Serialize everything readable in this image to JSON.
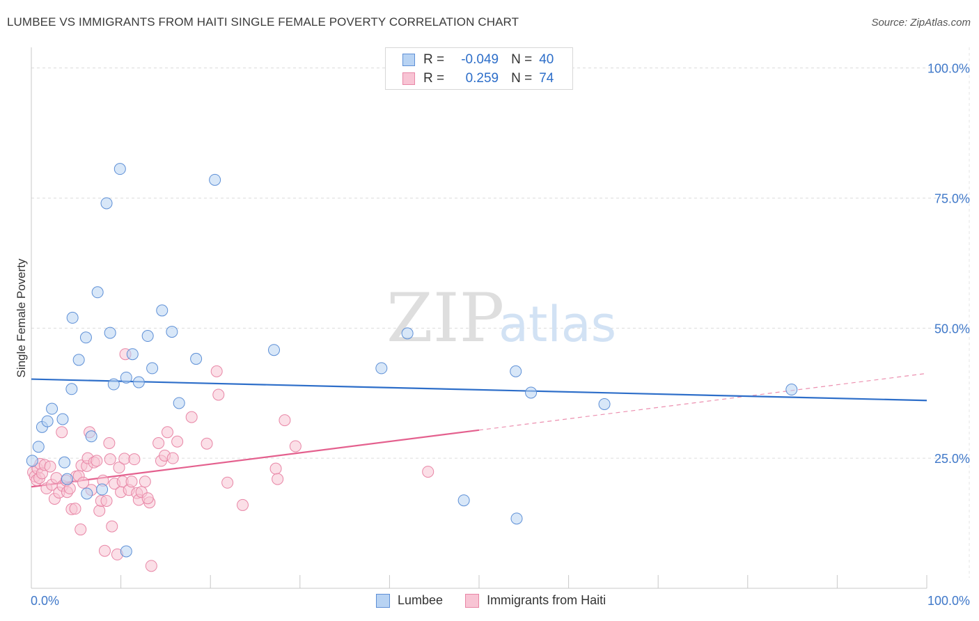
{
  "header": {
    "title": "LUMBEE VS IMMIGRANTS FROM HAITI SINGLE FEMALE POVERTY CORRELATION CHART",
    "source": "Source: ZipAtlas.com"
  },
  "legend_box": {
    "rows": [
      {
        "r_label": "R =",
        "r_value": "-0.049",
        "n_label": "N =",
        "n_value": "40"
      },
      {
        "r_label": "R =",
        "r_value": "0.259",
        "n_label": "N =",
        "n_value": "74"
      }
    ]
  },
  "bottom_legend": {
    "series1": "Lumbee",
    "series2": "Immigrants from Haiti"
  },
  "watermark": {
    "zip": "ZIP",
    "atlas": "atlas"
  },
  "colors": {
    "lumbee_fill": "#b8d3f3",
    "lumbee_stroke": "#5d8fd6",
    "lumbee_line": "#2d6ec9",
    "haiti_fill": "#f8c4d4",
    "haiti_stroke": "#e886a6",
    "haiti_line": "#e4608e",
    "axis_label": "#3f78c9",
    "grid": "#dcdcdc"
  },
  "chart_data": {
    "type": "scatter",
    "title": "LUMBEE VS IMMIGRANTS FROM HAITI SINGLE FEMALE POVERTY CORRELATION CHART",
    "xlabel": "",
    "ylabel": "Single Female Poverty",
    "xlim": [
      0,
      100
    ],
    "ylim": [
      0,
      100
    ],
    "x_tick_labels": [
      "0.0%",
      "100.0%"
    ],
    "y_tick_values": [
      25,
      50,
      75,
      100
    ],
    "y_tick_labels": [
      "25.0%",
      "50.0%",
      "75.0%",
      "100.0%"
    ],
    "series": [
      {
        "name": "Lumbee",
        "r": -0.049,
        "n": 40,
        "trend": {
          "x": [
            0,
            100
          ],
          "y": [
            40.2,
            36.1
          ],
          "solid_to": 100
        },
        "points": [
          [
            0.1,
            24.5
          ],
          [
            0.8,
            27.2
          ],
          [
            1.2,
            31.0
          ],
          [
            1.8,
            32.1
          ],
          [
            2.3,
            34.5
          ],
          [
            3.5,
            32.5
          ],
          [
            3.7,
            24.2
          ],
          [
            4.0,
            21.0
          ],
          [
            4.5,
            38.3
          ],
          [
            4.6,
            52.0
          ],
          [
            5.3,
            43.9
          ],
          [
            6.1,
            48.2
          ],
          [
            6.2,
            18.2
          ],
          [
            6.7,
            29.2
          ],
          [
            7.4,
            56.9
          ],
          [
            7.9,
            19.0
          ],
          [
            8.4,
            74.0
          ],
          [
            8.8,
            49.1
          ],
          [
            9.2,
            39.2
          ],
          [
            9.9,
            80.6
          ],
          [
            10.6,
            40.5
          ],
          [
            10.6,
            7.1
          ],
          [
            11.3,
            45.0
          ],
          [
            12.0,
            39.6
          ],
          [
            13.0,
            48.5
          ],
          [
            13.5,
            42.3
          ],
          [
            14.6,
            53.4
          ],
          [
            15.7,
            49.3
          ],
          [
            16.5,
            35.6
          ],
          [
            18.4,
            44.1
          ],
          [
            20.5,
            78.5
          ],
          [
            27.1,
            45.8
          ],
          [
            39.1,
            42.3
          ],
          [
            42.0,
            49.0
          ],
          [
            48.3,
            16.9
          ],
          [
            54.1,
            41.7
          ],
          [
            54.2,
            13.4
          ],
          [
            55.8,
            37.6
          ],
          [
            64.0,
            35.4
          ],
          [
            84.9,
            38.2
          ]
        ]
      },
      {
        "name": "Immigrants from Haiti",
        "r": 0.259,
        "n": 74,
        "trend": {
          "x": [
            0,
            100
          ],
          "y": [
            19.5,
            41.3
          ],
          "solid_to": 50
        },
        "points": [
          [
            0.2,
            22.3
          ],
          [
            0.4,
            21.5
          ],
          [
            0.6,
            20.8
          ],
          [
            0.7,
            23.0
          ],
          [
            0.9,
            21.2
          ],
          [
            1.0,
            23.9
          ],
          [
            1.2,
            22.1
          ],
          [
            1.5,
            23.7
          ],
          [
            1.7,
            19.2
          ],
          [
            2.1,
            23.4
          ],
          [
            2.3,
            19.9
          ],
          [
            2.6,
            17.2
          ],
          [
            2.8,
            21.2
          ],
          [
            3.1,
            18.4
          ],
          [
            3.4,
            30.0
          ],
          [
            3.5,
            19.7
          ],
          [
            3.9,
            20.7
          ],
          [
            4.0,
            18.5
          ],
          [
            4.3,
            19.2
          ],
          [
            4.5,
            15.2
          ],
          [
            4.9,
            15.3
          ],
          [
            5.0,
            21.5
          ],
          [
            5.3,
            21.6
          ],
          [
            5.5,
            11.3
          ],
          [
            5.6,
            23.6
          ],
          [
            5.8,
            20.3
          ],
          [
            6.2,
            23.5
          ],
          [
            6.3,
            25.0
          ],
          [
            6.5,
            30.0
          ],
          [
            6.7,
            18.9
          ],
          [
            7.0,
            24.2
          ],
          [
            7.3,
            24.5
          ],
          [
            7.6,
            14.9
          ],
          [
            7.8,
            16.8
          ],
          [
            8.0,
            20.7
          ],
          [
            8.2,
            7.2
          ],
          [
            8.4,
            16.8
          ],
          [
            8.7,
            27.9
          ],
          [
            8.8,
            24.8
          ],
          [
            9.0,
            11.9
          ],
          [
            9.3,
            20.1
          ],
          [
            9.6,
            6.5
          ],
          [
            9.8,
            23.2
          ],
          [
            10.0,
            18.5
          ],
          [
            10.2,
            20.5
          ],
          [
            10.4,
            24.9
          ],
          [
            10.5,
            45.0
          ],
          [
            10.9,
            18.9
          ],
          [
            11.2,
            20.5
          ],
          [
            11.5,
            24.8
          ],
          [
            11.8,
            18.3
          ],
          [
            12.0,
            17.0
          ],
          [
            12.3,
            18.5
          ],
          [
            12.7,
            20.5
          ],
          [
            13.2,
            16.5
          ],
          [
            13.4,
            4.3
          ],
          [
            14.2,
            27.9
          ],
          [
            14.5,
            24.5
          ],
          [
            14.9,
            25.5
          ],
          [
            15.2,
            30.0
          ],
          [
            15.8,
            25.0
          ],
          [
            16.3,
            28.2
          ],
          [
            17.9,
            32.9
          ],
          [
            19.6,
            27.8
          ],
          [
            20.7,
            41.7
          ],
          [
            20.9,
            37.2
          ],
          [
            21.9,
            20.3
          ],
          [
            23.6,
            16.0
          ],
          [
            27.3,
            23.0
          ],
          [
            27.5,
            21.0
          ],
          [
            28.3,
            32.3
          ],
          [
            29.5,
            27.3
          ],
          [
            44.3,
            22.4
          ],
          [
            13.0,
            17.3
          ]
        ]
      }
    ]
  }
}
